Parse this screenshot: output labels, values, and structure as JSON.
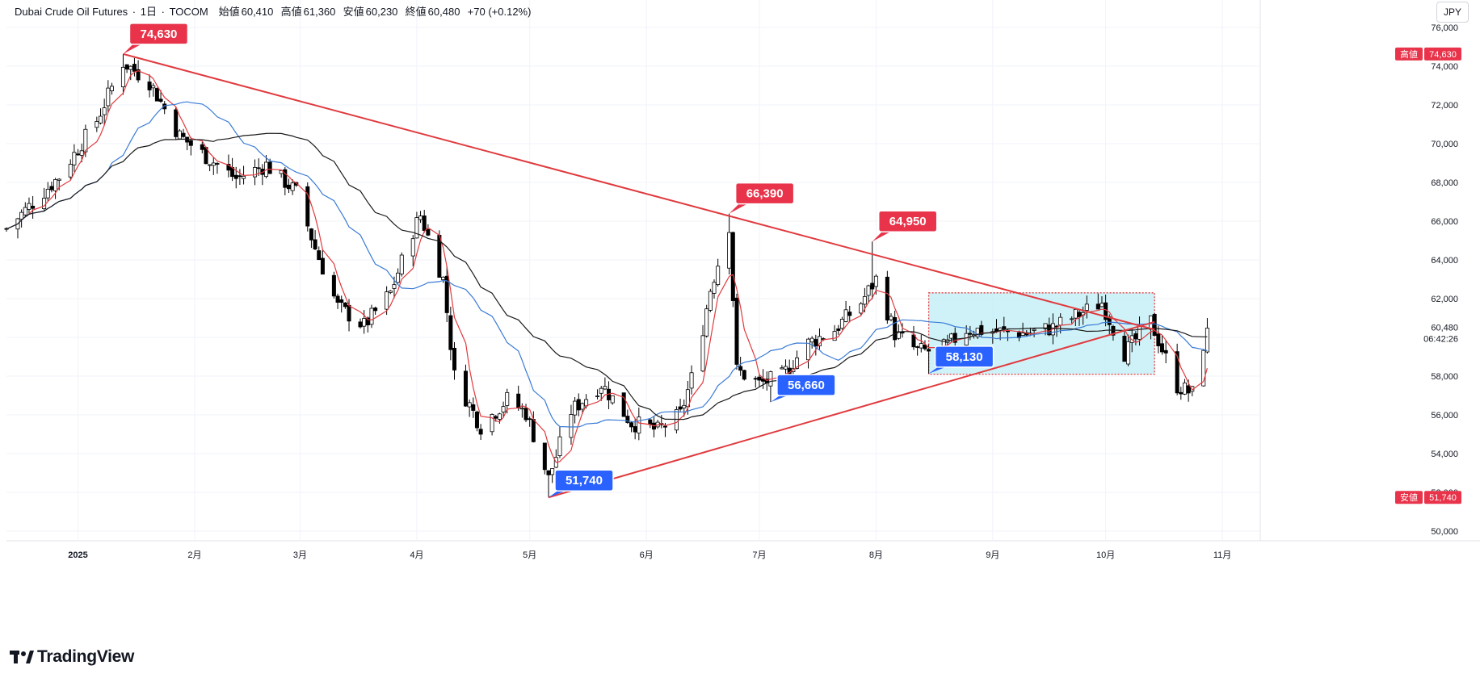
{
  "header": {
    "symbol": "Dubai Crude Oil Futures",
    "interval": "1日",
    "exchange": "TOCOM",
    "open_label": "始値",
    "open": "60,410",
    "high_label": "高値",
    "high": "61,360",
    "low_label": "安値",
    "low": "60,230",
    "close_label": "終値",
    "close": "60,480",
    "change": "+70 (+0.12%)"
  },
  "currency": "JPY",
  "brand": "TradingView",
  "colors": {
    "up": "#ffffff",
    "down": "#000000",
    "ma_short": "#e03a3e",
    "ma_mid": "#3a7bd5",
    "ma_long": "#1a1a1a",
    "trendline": "#e03a3e",
    "label_high": "#e8334a",
    "label_low": "#2962ff",
    "box_fill": "#bfeef5"
  },
  "chart_data": {
    "type": "candlestick",
    "y_axis": {
      "min": 49500,
      "max": 76500,
      "ticks": [
        "50,000",
        "52,000",
        "54,000",
        "56,000",
        "58,000",
        "60,000",
        "62,000",
        "64,000",
        "66,000",
        "68,000",
        "70,000",
        "72,000",
        "74,000",
        "76,000"
      ]
    },
    "x_axis": {
      "start": "2024-12-13",
      "end": "2025-11-10",
      "ticks": [
        {
          "date": "2025-01-01",
          "label": "2025"
        },
        {
          "date": "2025-02-01",
          "label": "2月"
        },
        {
          "date": "2025-03-01",
          "label": "3月"
        },
        {
          "date": "2025-04-01",
          "label": "4月"
        },
        {
          "date": "2025-05-01",
          "label": "5月"
        },
        {
          "date": "2025-06-01",
          "label": "6月"
        },
        {
          "date": "2025-07-01",
          "label": "7月"
        },
        {
          "date": "2025-08-01",
          "label": "8月"
        },
        {
          "date": "2025-09-01",
          "label": "9月"
        },
        {
          "date": "2025-10-01",
          "label": "10月"
        },
        {
          "date": "2025-11-01",
          "label": "11月"
        }
      ]
    },
    "anchors": [
      [
        "2024-12-13",
        65600
      ],
      [
        "2024-12-27",
        68300
      ],
      [
        "2025-01-06",
        71200
      ],
      [
        "2025-01-13",
        74200
      ],
      [
        "2025-01-20",
        73200
      ],
      [
        "2025-01-28",
        70400
      ],
      [
        "2025-02-05",
        69200
      ],
      [
        "2025-02-12",
        68200
      ],
      [
        "2025-02-20",
        68900
      ],
      [
        "2025-02-28",
        67500
      ],
      [
        "2025-03-05",
        64600
      ],
      [
        "2025-03-11",
        61600
      ],
      [
        "2025-03-18",
        60600
      ],
      [
        "2025-03-25",
        62300
      ],
      [
        "2025-03-31",
        65500
      ],
      [
        "2025-04-02",
        66300
      ],
      [
        "2025-04-08",
        63000
      ],
      [
        "2025-04-11",
        58000
      ],
      [
        "2025-04-18",
        55400
      ],
      [
        "2025-04-25",
        56800
      ],
      [
        "2025-04-30",
        56100
      ],
      [
        "2025-05-06",
        52700
      ],
      [
        "2025-05-12",
        56200
      ],
      [
        "2025-05-20",
        57600
      ],
      [
        "2025-05-28",
        55600
      ],
      [
        "2025-06-04",
        55200
      ],
      [
        "2025-06-10",
        56000
      ],
      [
        "2025-06-14",
        58500
      ],
      [
        "2025-06-18",
        62500
      ],
      [
        "2025-06-23",
        65800
      ],
      [
        "2025-06-25",
        58300
      ],
      [
        "2025-07-01",
        57600
      ],
      [
        "2025-07-07",
        58000
      ],
      [
        "2025-07-14",
        59700
      ],
      [
        "2025-07-21",
        60400
      ],
      [
        "2025-07-28",
        61800
      ],
      [
        "2025-08-01",
        63000
      ],
      [
        "2025-08-06",
        60200
      ],
      [
        "2025-08-12",
        59300
      ],
      [
        "2025-08-18",
        59300
      ],
      [
        "2025-08-25",
        60400
      ],
      [
        "2025-09-03",
        60300
      ],
      [
        "2025-09-10",
        60200
      ],
      [
        "2025-09-17",
        60500
      ],
      [
        "2025-09-24",
        61200
      ],
      [
        "2025-09-30",
        61800
      ],
      [
        "2025-10-06",
        59200
      ],
      [
        "2025-10-13",
        60800
      ],
      [
        "2025-10-20",
        57500
      ],
      [
        "2025-10-24",
        57100
      ],
      [
        "2025-10-28",
        60480
      ]
    ],
    "moving_averages": [
      {
        "color": "#e03a3e",
        "period": 5
      },
      {
        "color": "#3a7bd5",
        "period": 20
      },
      {
        "color": "#1a1a1a",
        "period": 40
      }
    ],
    "trendlines": [
      {
        "from": [
          "2025-01-13",
          74630
        ],
        "to": [
          "2025-10-14",
          60400
        ]
      },
      {
        "from": [
          "2025-05-06",
          51740
        ],
        "to": [
          "2025-10-14",
          60800
        ]
      }
    ],
    "range_box": {
      "from": [
        "2025-08-15",
        62300
      ],
      "to": [
        "2025-10-14",
        58100
      ]
    },
    "callouts": [
      {
        "date": "2025-01-13",
        "price": 74630,
        "text": "74,630",
        "kind": "high"
      },
      {
        "date": "2025-06-23",
        "price": 66390,
        "text": "66,390",
        "kind": "high"
      },
      {
        "date": "2025-07-31",
        "price": 64950,
        "text": "64,950",
        "kind": "high"
      },
      {
        "date": "2025-05-06",
        "price": 51740,
        "text": "51,740",
        "kind": "low"
      },
      {
        "date": "2025-07-04",
        "price": 56660,
        "text": "56,660",
        "kind": "low"
      },
      {
        "date": "2025-08-15",
        "price": 58130,
        "text": "58,130",
        "kind": "low"
      }
    ],
    "price_markers": [
      {
        "label": "高値",
        "value": "74,630",
        "price": 74630
      },
      {
        "label": "安値",
        "value": "51,740",
        "price": 51740
      }
    ],
    "last_price": {
      "value": "60,480",
      "countdown": "06:42:26",
      "price": 60480
    }
  }
}
